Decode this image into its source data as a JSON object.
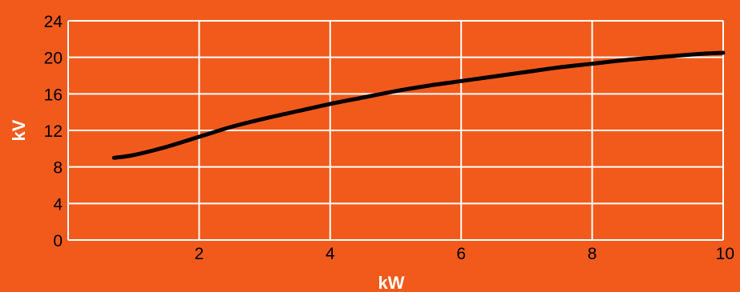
{
  "chart_data": {
    "type": "line",
    "title": "",
    "xlabel": "kW",
    "ylabel": "kV",
    "xlim": [
      0,
      10
    ],
    "ylim": [
      0,
      24
    ],
    "x_ticks": [
      "2",
      "4",
      "6",
      "8",
      "10"
    ],
    "y_ticks": [
      "0",
      "4",
      "8",
      "12",
      "16",
      "20",
      "24"
    ],
    "grid": true,
    "legend": "none",
    "series": [
      {
        "x": [
          0.7,
          1.0,
          1.5,
          2.0,
          2.5,
          3.0,
          3.5,
          4.0,
          4.5,
          5.0,
          5.5,
          6.0,
          6.5,
          7.0,
          7.5,
          8.0,
          8.5,
          9.0,
          9.5,
          10.0
        ],
        "y": [
          9.0,
          9.3,
          10.2,
          11.3,
          12.4,
          13.3,
          14.1,
          14.9,
          15.6,
          16.3,
          16.9,
          17.4,
          17.9,
          18.4,
          18.9,
          19.3,
          19.7,
          20.0,
          20.3,
          20.5
        ]
      }
    ]
  },
  "colors": {
    "background": "#f25a1c",
    "grid": "#ffffff",
    "line": "#000000",
    "tick_text": "#000000",
    "axis_title": "#ffffff"
  }
}
